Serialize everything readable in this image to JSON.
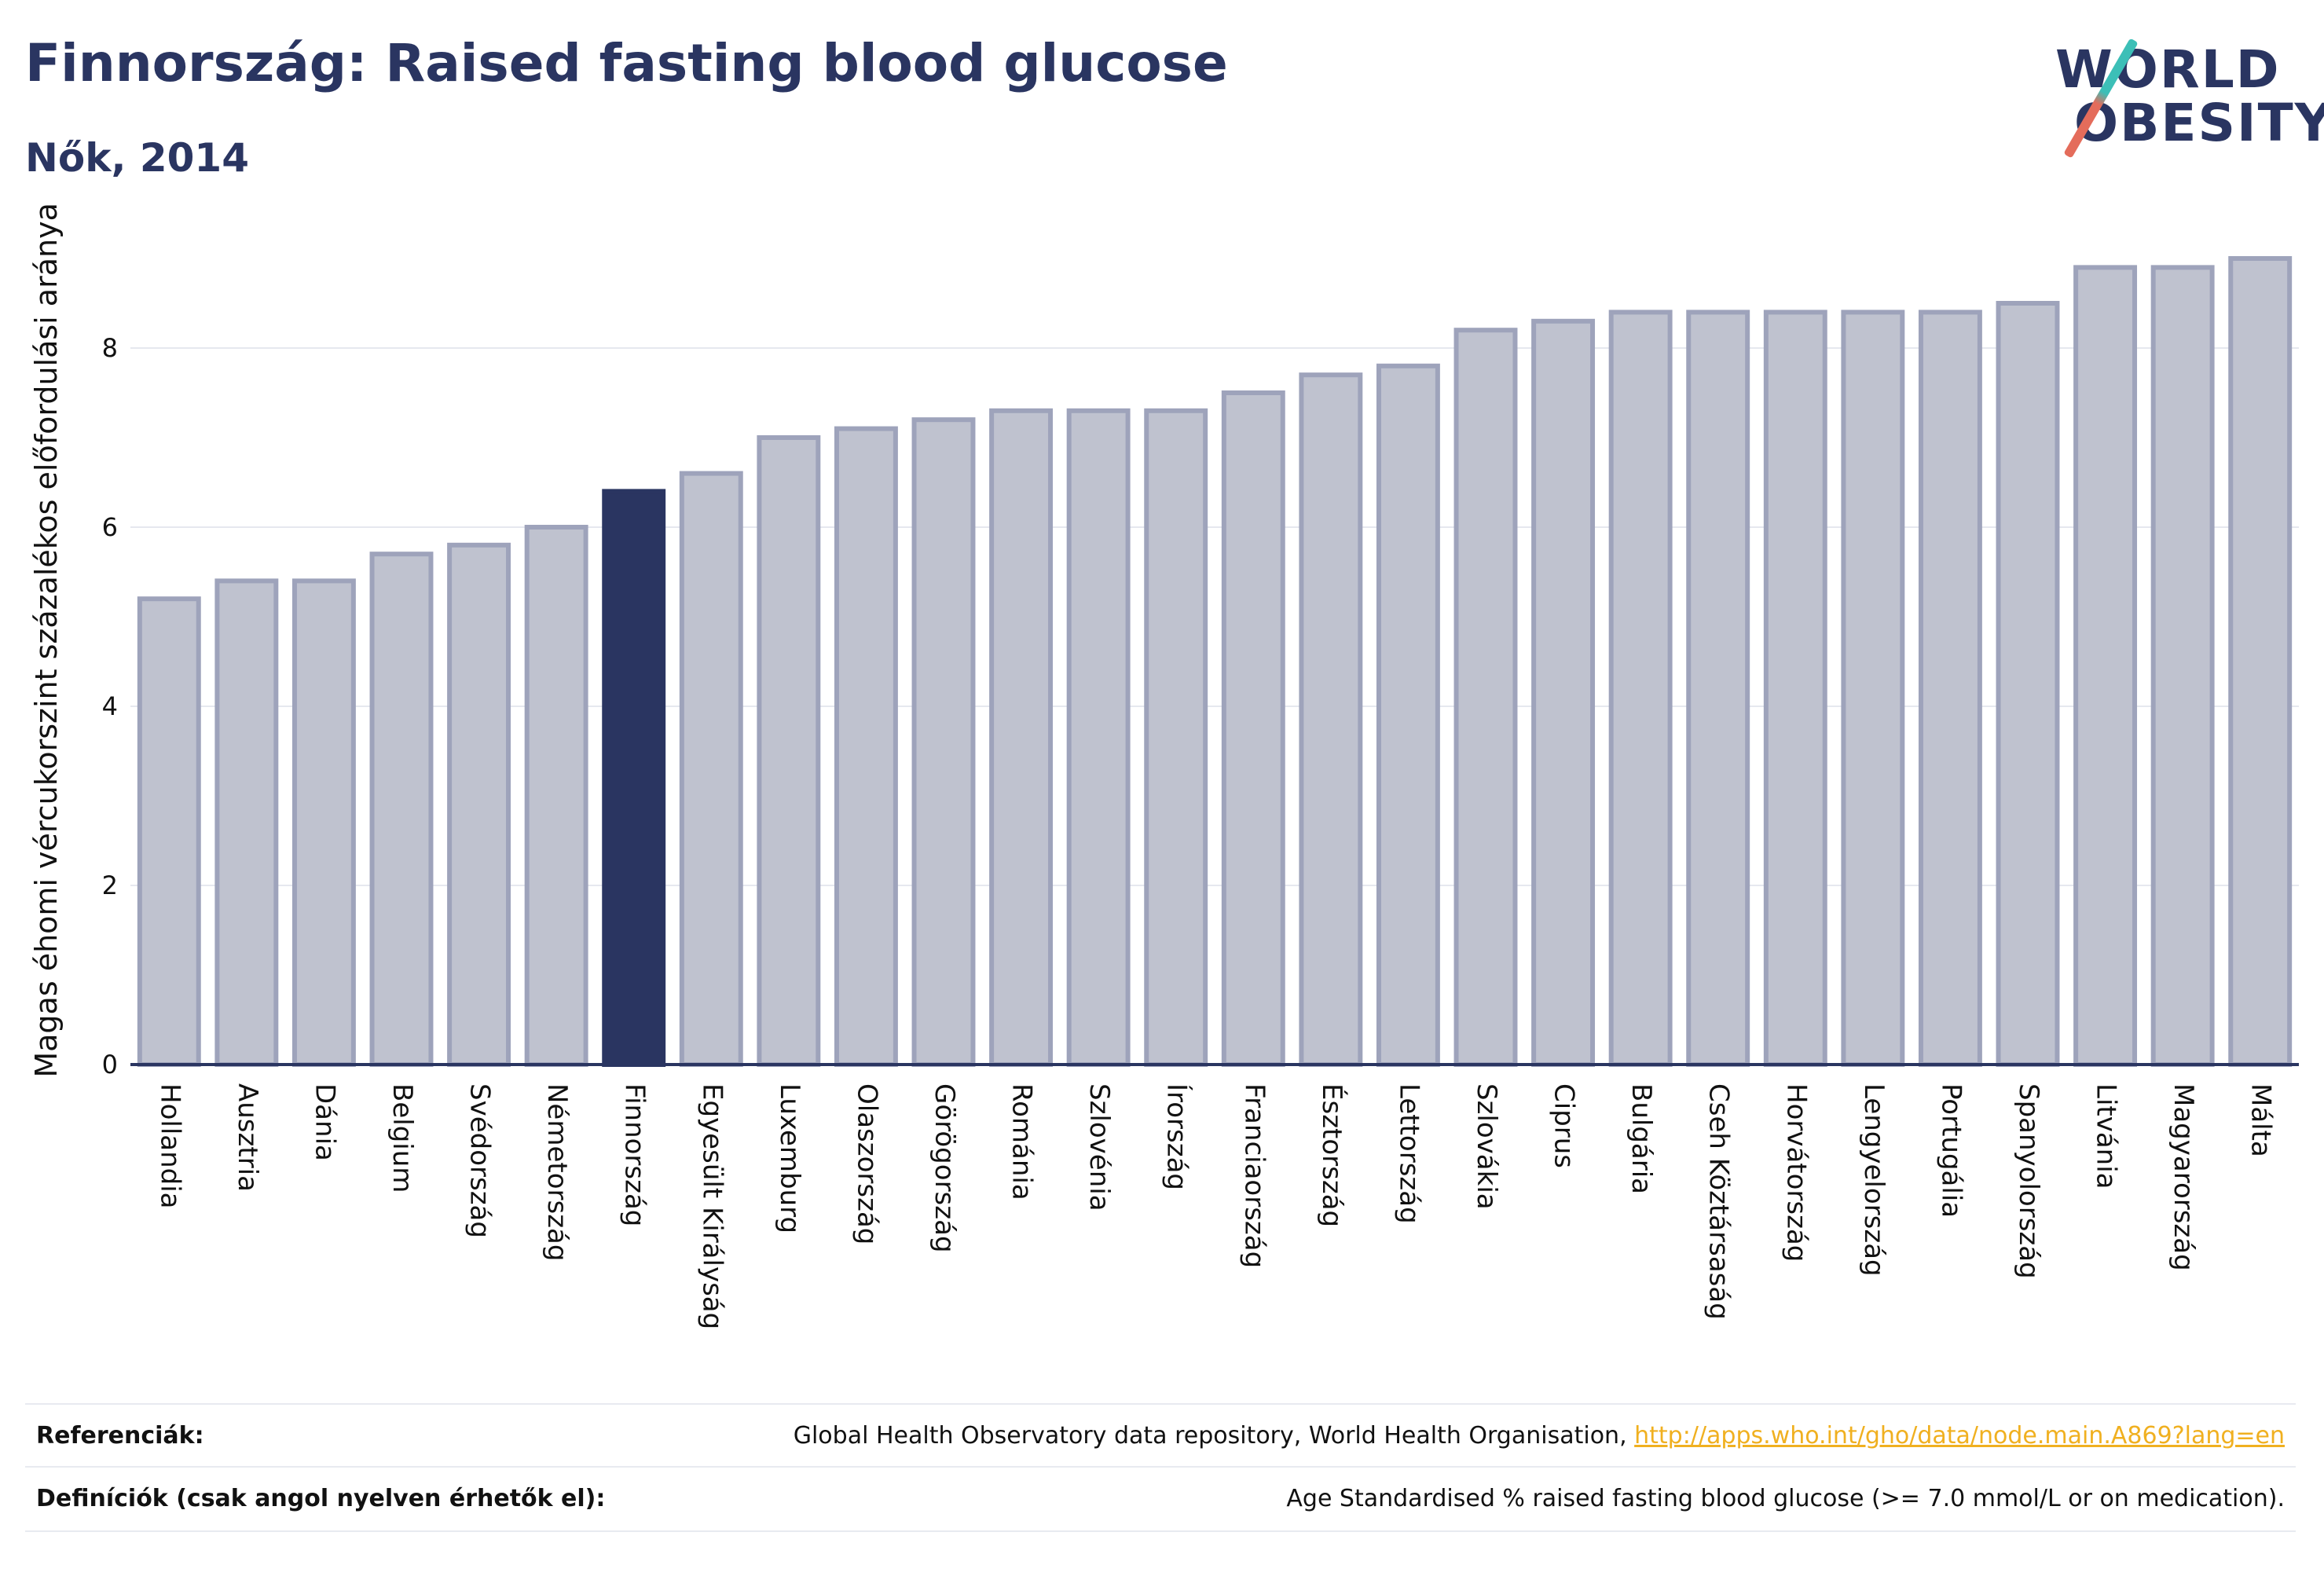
{
  "header": {
    "title": "Finnország: Raised fasting blood glucose",
    "subtitle": "Nők, 2014"
  },
  "logo": {
    "line1": "WORLD",
    "line2": "OBESITY",
    "colors": {
      "text": "#2a3561",
      "slash_top": "#3cbfb7",
      "slash_bottom": "#e46c5b"
    }
  },
  "chart_data": {
    "type": "bar",
    "title": "",
    "xlabel": "",
    "ylabel": "Magas éhomi vércukorszint százalékos előfordulási aránya",
    "ylim": [
      0,
      9.3
    ],
    "yticks": [
      0,
      2,
      4,
      6,
      8
    ],
    "grid": true,
    "highlight": "Finnország",
    "colors": {
      "highlight": "#2a3561",
      "default_fill": "#bfc2cf",
      "default_stroke": "#9ea3bb",
      "axis": "#2a3561",
      "grid": "#e6e8ef"
    },
    "categories": [
      "Hollandia",
      "Ausztria",
      "Dánia",
      "Belgium",
      "Svédország",
      "Németország",
      "Finnország",
      "Egyesült Királyság",
      "Luxemburg",
      "Olaszország",
      "Görögország",
      "Románia",
      "Szlovénia",
      "Írország",
      "Franciaország",
      "Észtország",
      "Lettország",
      "Szlovákia",
      "Ciprus",
      "Bulgária",
      "Cseh Köztársaság",
      "Horvátország",
      "Lengyelország",
      "Portugália",
      "Spanyolország",
      "Litvánia",
      "Magyarország",
      "Málta"
    ],
    "values": [
      5.2,
      5.4,
      5.4,
      5.7,
      5.8,
      6.0,
      6.4,
      6.6,
      7.0,
      7.1,
      7.2,
      7.3,
      7.3,
      7.3,
      7.5,
      7.7,
      7.8,
      8.2,
      8.3,
      8.4,
      8.4,
      8.4,
      8.4,
      8.4,
      8.5,
      8.9,
      8.9,
      9.0
    ]
  },
  "footer": {
    "references_label": "Referenciák:",
    "references_text": "Global Health Observatory data repository, World Health Organisation, ",
    "references_link": "http://apps.who.int/gho/data/node.main.A869?lang=en",
    "definitions_label": "Definíciók (csak angol nyelven érhetők el):",
    "definitions_text": "Age Standardised % raised fasting blood glucose (>= 7.0 mmol/L or on medication)."
  }
}
